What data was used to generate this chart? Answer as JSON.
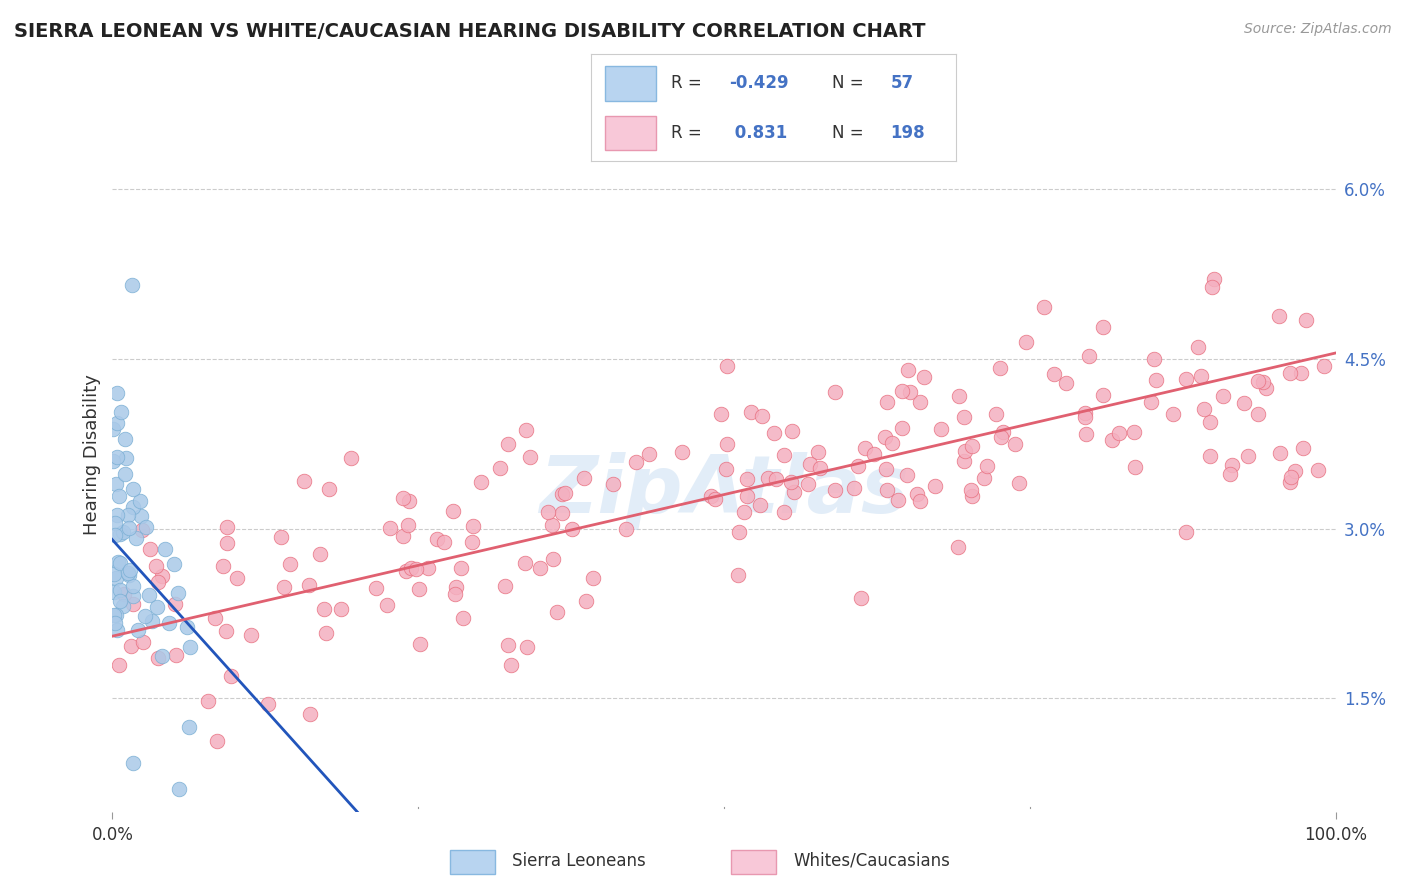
{
  "title": "SIERRA LEONEAN VS WHITE/CAUCASIAN HEARING DISABILITY CORRELATION CHART",
  "source_text": "Source: ZipAtlas.com",
  "ylabel": "Hearing Disability",
  "y_ticks": [
    0.015,
    0.03,
    0.045,
    0.06
  ],
  "y_tick_labels": [
    "1.5%",
    "3.0%",
    "4.5%",
    "6.0%"
  ],
  "x_lim": [
    0.0,
    1.0
  ],
  "y_lim": [
    0.005,
    0.068
  ],
  "watermark": "ZipAtlas",
  "blue_dot_color": "#aac9e8",
  "pink_dot_color": "#f4b0c0",
  "blue_dot_edge": "#7aafd4",
  "pink_dot_edge": "#e87080",
  "blue_line_color": "#2255bb",
  "pink_line_color": "#e06070",
  "grid_color": "#cccccc",
  "background_color": "#ffffff",
  "blue_R": -0.429,
  "blue_N": 57,
  "pink_R": 0.831,
  "pink_N": 198,
  "blue_legend_fill": "#b8d4f0",
  "blue_legend_edge": "#88b8e0",
  "pink_legend_fill": "#f8c8d8",
  "pink_legend_edge": "#e898b0",
  "legend_text_color": "#4472c4",
  "title_color": "#222222",
  "source_color": "#999999",
  "axis_label_color": "#333333",
  "tick_label_color": "#4472c4"
}
